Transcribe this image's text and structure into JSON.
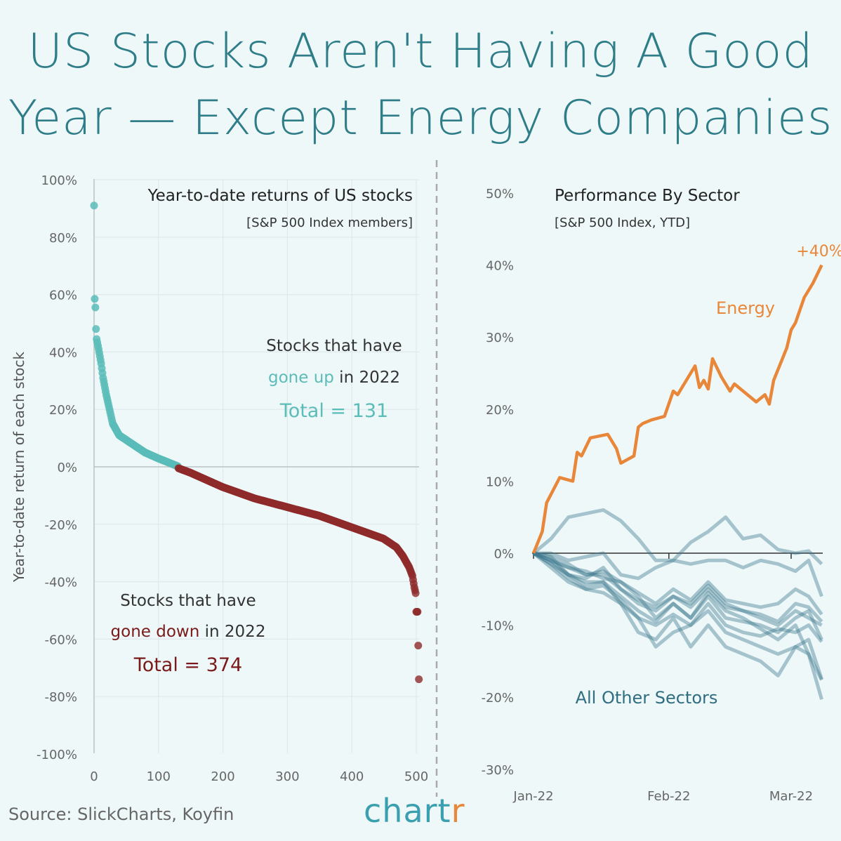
{
  "title_line1": "US Stocks Aren't Having A Good",
  "title_line2": "Year — Except Energy Companies",
  "source": "Source: SlickCharts, Koyfin",
  "logo": {
    "main": "chart",
    "accent": "r"
  },
  "colors": {
    "up": "#5bbcb8",
    "down": "#8e2a2a",
    "energy": "#e8873a",
    "sectors": "#3d7a90",
    "title": "#2f7d88"
  },
  "chart_data": [
    {
      "type": "scatter",
      "title": "Year-to-date returns of US stocks",
      "subtitle": "[S&P 500 Index members]",
      "ylabel": "Year-to-date return of each stock",
      "xlabel": "",
      "xlim": [
        0,
        505
      ],
      "ylim": [
        -100,
        100
      ],
      "xticks": [
        "0",
        "100",
        "200",
        "300",
        "400",
        "500"
      ],
      "yticks": [
        "100%",
        "80%",
        "60%",
        "40%",
        "20%",
        "0%",
        "-20%",
        "-40%",
        "-60%",
        "-80%",
        "-100%"
      ],
      "grid": true,
      "up_annotation": {
        "line1": "Stocks that have",
        "hl": "gone up",
        "rest": " in 2022",
        "total": "Total = 131"
      },
      "down_annotation": {
        "line1": "Stocks that have",
        "hl": "gone down",
        "rest": " in 2022",
        "total": "Total = 374"
      },
      "up_count": 131,
      "down_count": 374,
      "rank_return_anchors": [
        [
          1,
          91
        ],
        [
          2,
          58.5
        ],
        [
          3,
          55.5
        ],
        [
          4,
          48
        ],
        [
          5,
          44.5
        ],
        [
          8,
          41
        ],
        [
          12,
          36
        ],
        [
          15,
          31
        ],
        [
          20,
          25
        ],
        [
          25,
          20
        ],
        [
          30,
          15
        ],
        [
          40,
          11
        ],
        [
          60,
          8
        ],
        [
          80,
          5
        ],
        [
          100,
          3
        ],
        [
          131,
          0.2
        ],
        [
          132,
          -0.5
        ],
        [
          150,
          -2
        ],
        [
          200,
          -7
        ],
        [
          250,
          -11
        ],
        [
          300,
          -14
        ],
        [
          350,
          -17
        ],
        [
          400,
          -21
        ],
        [
          450,
          -25
        ],
        [
          470,
          -28
        ],
        [
          480,
          -31
        ],
        [
          490,
          -35
        ],
        [
          495,
          -38
        ],
        [
          498,
          -42
        ],
        [
          500,
          -44
        ],
        [
          501,
          -50.5
        ],
        [
          503,
          -50.5
        ],
        [
          505,
          -74
        ]
      ]
    },
    {
      "type": "line",
      "title": "Performance By Sector",
      "subtitle": "[S&P 500 Index, YTD]",
      "ylim": [
        -30,
        50
      ],
      "yticks": [
        "50%",
        "40%",
        "30%",
        "20%",
        "10%",
        "0%",
        "-10%",
        "-20%",
        "-30%"
      ],
      "xticks": [
        {
          "label": "Jan-22",
          "day": 0
        },
        {
          "label": "Feb-22",
          "day": 31
        },
        {
          "label": "Mar-22",
          "day": 59
        }
      ],
      "energy": {
        "name": "Energy",
        "end_label": "+40%",
        "points": [
          [
            0,
            0
          ],
          [
            2,
            3
          ],
          [
            3,
            7
          ],
          [
            6,
            10.5
          ],
          [
            9,
            10
          ],
          [
            10,
            14
          ],
          [
            11,
            13.5
          ],
          [
            13,
            16
          ],
          [
            17,
            16.5
          ],
          [
            19,
            14.5
          ],
          [
            20,
            12.5
          ],
          [
            23,
            13.5
          ],
          [
            24,
            17.5
          ],
          [
            25,
            18
          ],
          [
            27,
            18.5
          ],
          [
            30,
            19
          ],
          [
            32,
            22.5
          ],
          [
            33,
            22
          ],
          [
            35,
            24
          ],
          [
            37,
            26
          ],
          [
            38,
            23
          ],
          [
            39,
            24
          ],
          [
            40,
            22.8
          ],
          [
            41,
            27
          ],
          [
            43,
            24.5
          ],
          [
            45,
            22.5
          ],
          [
            46,
            23.5
          ],
          [
            51,
            21
          ],
          [
            53,
            22
          ],
          [
            54,
            20.7
          ],
          [
            55,
            24
          ],
          [
            58,
            28.5
          ],
          [
            59,
            31
          ],
          [
            60,
            32
          ],
          [
            62,
            35.5
          ],
          [
            64,
            37.5
          ],
          [
            66,
            40
          ]
        ]
      },
      "others_label": "All Other Sectors",
      "others_days": [
        0,
        4,
        8,
        12,
        16,
        20,
        24,
        28,
        32,
        36,
        40,
        44,
        48,
        52,
        56,
        60,
        63,
        66
      ],
      "others": [
        [
          0,
          2,
          5,
          5.5,
          6,
          4.5,
          2,
          -1,
          -1,
          1.5,
          3,
          5,
          2,
          2.5,
          0.5,
          0,
          0.3,
          -1.5
        ],
        [
          0,
          0,
          -1,
          -0.5,
          0,
          -3,
          -3.5,
          -2,
          -1,
          -1.5,
          -1,
          -1,
          -2,
          -1,
          -1.5,
          -2.5,
          -1,
          -6
        ],
        [
          0,
          -1,
          -2,
          -2.5,
          -3.5,
          -4,
          -5.5,
          -7,
          -5,
          -6.5,
          -4,
          -6.5,
          -7,
          -7.5,
          -7,
          -5,
          -6,
          -8.5
        ],
        [
          0,
          -1.5,
          -3,
          -3.5,
          -2,
          -5,
          -7,
          -8,
          -6,
          -7.5,
          -5,
          -7.5,
          -8,
          -8.5,
          -9.5,
          -7,
          -7.5,
          -9.5
        ],
        [
          0,
          -1,
          -3,
          -4,
          -4,
          -6,
          -8,
          -9.5,
          -7,
          -9,
          -6,
          -9,
          -9.5,
          -10,
          -11,
          -9,
          -8,
          -12
        ],
        [
          0,
          -2,
          -4,
          -5,
          -4.5,
          -6.5,
          -9,
          -10,
          -8.5,
          -10,
          -7,
          -10,
          -11,
          -11.5,
          -10.5,
          -11,
          -10,
          -12.3
        ],
        [
          0,
          -0.5,
          -3,
          -4.5,
          -4,
          -7,
          -9,
          -13,
          -11,
          -10,
          -8,
          -11,
          -12,
          -13,
          -14,
          -13,
          -12,
          -17.5
        ],
        [
          0,
          -1.5,
          -3.5,
          -5,
          -5.5,
          -7,
          -11,
          -12,
          -9,
          -13,
          -10,
          -13,
          -14,
          -15,
          -17,
          -13,
          -14,
          -17.6
        ],
        [
          0,
          -1,
          -2,
          -3,
          -2.5,
          -4,
          -6,
          -9,
          -7,
          -9,
          -5.5,
          -8,
          -9,
          -10.5,
          -12,
          -10,
          -14,
          -20.3
        ],
        [
          0,
          -0.5,
          -1.5,
          -3,
          -3,
          -5,
          -6.5,
          -7.5,
          -6,
          -7,
          -4.5,
          -7,
          -8,
          -9,
          -10,
          -8,
          -9,
          -10
        ]
      ]
    }
  ]
}
